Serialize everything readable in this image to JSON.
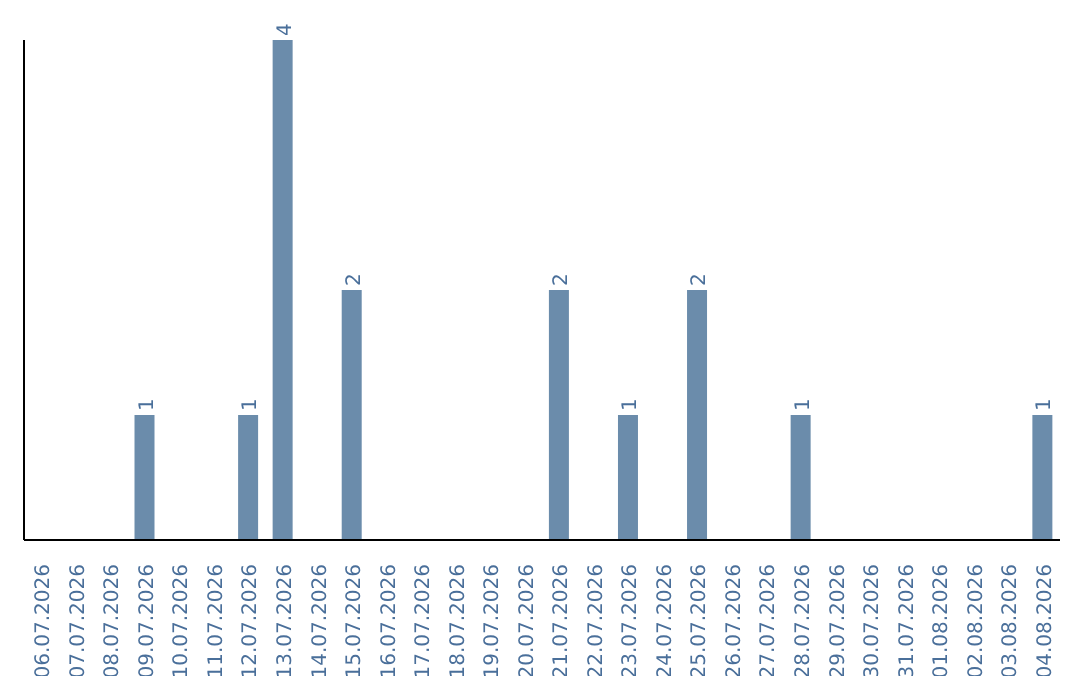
{
  "chart_data": {
    "type": "bar",
    "categories": [
      "06.07.2026",
      "07.07.2026",
      "08.07.2026",
      "09.07.2026",
      "10.07.2026",
      "11.07.2026",
      "12.07.2026",
      "13.07.2026",
      "14.07.2026",
      "15.07.2026",
      "16.07.2026",
      "17.07.2026",
      "18.07.2026",
      "19.07.2026",
      "20.07.2026",
      "21.07.2026",
      "22.07.2026",
      "23.07.2026",
      "24.07.2026",
      "25.07.2026",
      "26.07.2026",
      "27.07.2026",
      "28.07.2026",
      "29.07.2026",
      "30.07.2026",
      "31.07.2026",
      "01.08.2026",
      "02.08.2026",
      "03.08.2026",
      "04.08.2026"
    ],
    "values": [
      null,
      null,
      null,
      1,
      null,
      null,
      1,
      4,
      null,
      2,
      null,
      null,
      null,
      null,
      null,
      2,
      null,
      1,
      null,
      2,
      null,
      null,
      1,
      null,
      null,
      null,
      null,
      null,
      null,
      1
    ],
    "data_labels": true,
    "color": "#6b8cab",
    "grid": false,
    "legend": false
  }
}
